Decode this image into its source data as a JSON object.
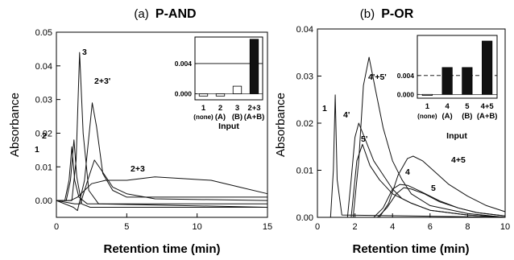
{
  "chart_data": [
    {
      "type": "line",
      "panel": "(a)",
      "title": "P-AND",
      "xlabel": "Retention time (min)",
      "ylabel": "Absorbance",
      "xlim": [
        0,
        15
      ],
      "ylim": [
        -0.005,
        0.05
      ],
      "xticks": [
        "0",
        "5",
        "10",
        "15"
      ],
      "yticks": [
        "0.00",
        "0.01",
        "0.02",
        "0.03",
        "0.04",
        "0.05"
      ],
      "series": [
        {
          "name": "1",
          "x": [
            0,
            0.6,
            0.9,
            1.1,
            1.3,
            1.6,
            2.2,
            15
          ],
          "y": [
            0,
            0,
            0.006,
            0.016,
            0.006,
            0.001,
            -0.001,
            -0.001
          ]
        },
        {
          "name": "2",
          "x": [
            0,
            0.7,
            1.0,
            1.25,
            1.45,
            1.8,
            2.4,
            15
          ],
          "y": [
            0,
            0,
            0.006,
            0.018,
            0.007,
            -0.001,
            -0.002,
            -0.002
          ]
        },
        {
          "name": "3",
          "x": [
            0,
            1.1,
            1.4,
            1.65,
            1.9,
            2.3,
            3.0,
            15
          ],
          "y": [
            0,
            0,
            0.012,
            0.044,
            0.02,
            0.003,
            -0.001,
            -0.002
          ]
        },
        {
          "name": "2+3'",
          "x": [
            0,
            1.2,
            1.5,
            2.0,
            2.55,
            2.85,
            3.3,
            4.0,
            5.0,
            15
          ],
          "y": [
            0,
            -0.002,
            -0.003,
            0.006,
            0.029,
            0.022,
            0.008,
            0.003,
            0.001,
            0.001
          ]
        },
        {
          "name": "2+3",
          "x": [
            0,
            1.0,
            1.5,
            2.5,
            3.5,
            5.0,
            7.0,
            9.0,
            11.0,
            13.0,
            15.0
          ],
          "y": [
            0,
            0,
            0.001,
            0.005,
            0.006,
            0.006,
            0.007,
            0.0065,
            0.006,
            0.004,
            0.002
          ]
        },
        {
          "name": "",
          "x": [
            0,
            1.3,
            1.7,
            2.3,
            2.7,
            3.2,
            4.0,
            5.0,
            7.0,
            15
          ],
          "y": [
            0,
            -0.001,
            -0.001,
            0.007,
            0.012,
            0.009,
            0.004,
            0.002,
            0.0005,
            0
          ]
        }
      ],
      "peak_labels": [
        "1",
        "2",
        "3",
        "2+3'",
        "2+3"
      ],
      "inset": {
        "type": "bar",
        "categories": [
          "1",
          "2",
          "3",
          "2+3"
        ],
        "subcategories": [
          "(none)",
          "(A)",
          "(B)",
          "(A+B)"
        ],
        "values": [
          -0.0003,
          -0.0003,
          0.001,
          0.0072
        ],
        "colors": [
          "#ffffff",
          "#ffffff",
          "#ffffff",
          "#111111"
        ],
        "yticks": [
          "0.000",
          "0.004"
        ],
        "ylim": [
          -0.0008,
          0.0075
        ],
        "threshold": 0.004,
        "threshold_style": "solid",
        "xlabel": "Input"
      }
    },
    {
      "type": "line",
      "panel": "(b)",
      "title": "P-OR",
      "xlabel": "Retention time (min)",
      "ylabel": "Absorbance",
      "xlim": [
        0,
        10
      ],
      "ylim": [
        0,
        0.04
      ],
      "xticks": [
        "0",
        "2",
        "4",
        "6",
        "8",
        "10"
      ],
      "yticks": [
        "0.00",
        "0.01",
        "0.02",
        "0.03",
        "0.04"
      ],
      "series": [
        {
          "name": "1",
          "x": [
            0,
            0.7,
            0.85,
            0.95,
            1.05,
            1.3,
            10
          ],
          "y": [
            0,
            0,
            0.01,
            0.026,
            0.008,
            0.0005,
            0
          ]
        },
        {
          "name": "4'",
          "x": [
            0,
            1.6,
            1.8,
            2.0,
            2.2,
            2.5,
            3.0,
            3.5,
            4.0,
            4.5,
            5.0,
            6.0,
            8.0,
            10.0
          ],
          "y": [
            0,
            0,
            0.008,
            0.017,
            0.02,
            0.017,
            0.012,
            0.009,
            0.006,
            0.004,
            0.003,
            0.0015,
            0.0005,
            0
          ]
        },
        {
          "name": "5'",
          "x": [
            0,
            1.8,
            2.1,
            2.4,
            2.8,
            3.3,
            4.0,
            5.0,
            6.0,
            8.0,
            10.0
          ],
          "y": [
            0,
            0,
            0.012,
            0.0155,
            0.011,
            0.008,
            0.005,
            0.003,
            0.0015,
            0.0005,
            0
          ]
        },
        {
          "name": "4'+5'",
          "x": [
            0,
            1.9,
            2.2,
            2.45,
            2.75,
            3.1,
            3.5,
            4.0,
            4.5,
            5.0,
            6.0,
            8.0,
            10.0
          ],
          "y": [
            0,
            0,
            0.012,
            0.028,
            0.034,
            0.027,
            0.019,
            0.012,
            0.008,
            0.005,
            0.0025,
            0.0008,
            0
          ]
        },
        {
          "name": "4",
          "x": [
            0,
            3.0,
            3.5,
            4.0,
            4.4,
            4.8,
            5.5,
            6.5,
            7.5,
            8.5,
            10.0
          ],
          "y": [
            0,
            0,
            0.002,
            0.006,
            0.007,
            0.0068,
            0.0055,
            0.0035,
            0.002,
            0.001,
            0.0003
          ]
        },
        {
          "name": "5",
          "x": [
            0,
            3.2,
            3.7,
            4.2,
            4.6,
            5.0,
            5.7,
            6.5,
            7.5,
            8.5,
            10.0
          ],
          "y": [
            0,
            0,
            0.002,
            0.005,
            0.0063,
            0.006,
            0.005,
            0.0033,
            0.002,
            0.001,
            0.0003
          ]
        },
        {
          "name": "4+5",
          "x": [
            0,
            3.3,
            3.8,
            4.3,
            4.8,
            5.1,
            5.6,
            6.3,
            7.0,
            8.0,
            9.0,
            10.0
          ],
          "y": [
            0,
            0,
            0.003,
            0.009,
            0.0125,
            0.013,
            0.012,
            0.0095,
            0.007,
            0.0045,
            0.0025,
            0.0012
          ]
        }
      ],
      "peak_labels": [
        "1",
        "4'",
        "5'",
        "4'+5'",
        "4",
        "5",
        "4+5"
      ],
      "inset": {
        "type": "bar",
        "categories": [
          "1",
          "4",
          "5",
          "4+5"
        ],
        "subcategories": [
          "(none)",
          "(A)",
          "(B)",
          "(A+B)"
        ],
        "values": [
          -0.0002,
          0.0057,
          0.0057,
          0.0113
        ],
        "colors": [
          "#ffffff",
          "#111111",
          "#111111",
          "#111111"
        ],
        "yticks": [
          "0.000",
          "0.004"
        ],
        "ylim": [
          -0.0008,
          0.0125
        ],
        "threshold": 0.004,
        "threshold_style": "dashed",
        "xlabel": "Input"
      }
    }
  ]
}
